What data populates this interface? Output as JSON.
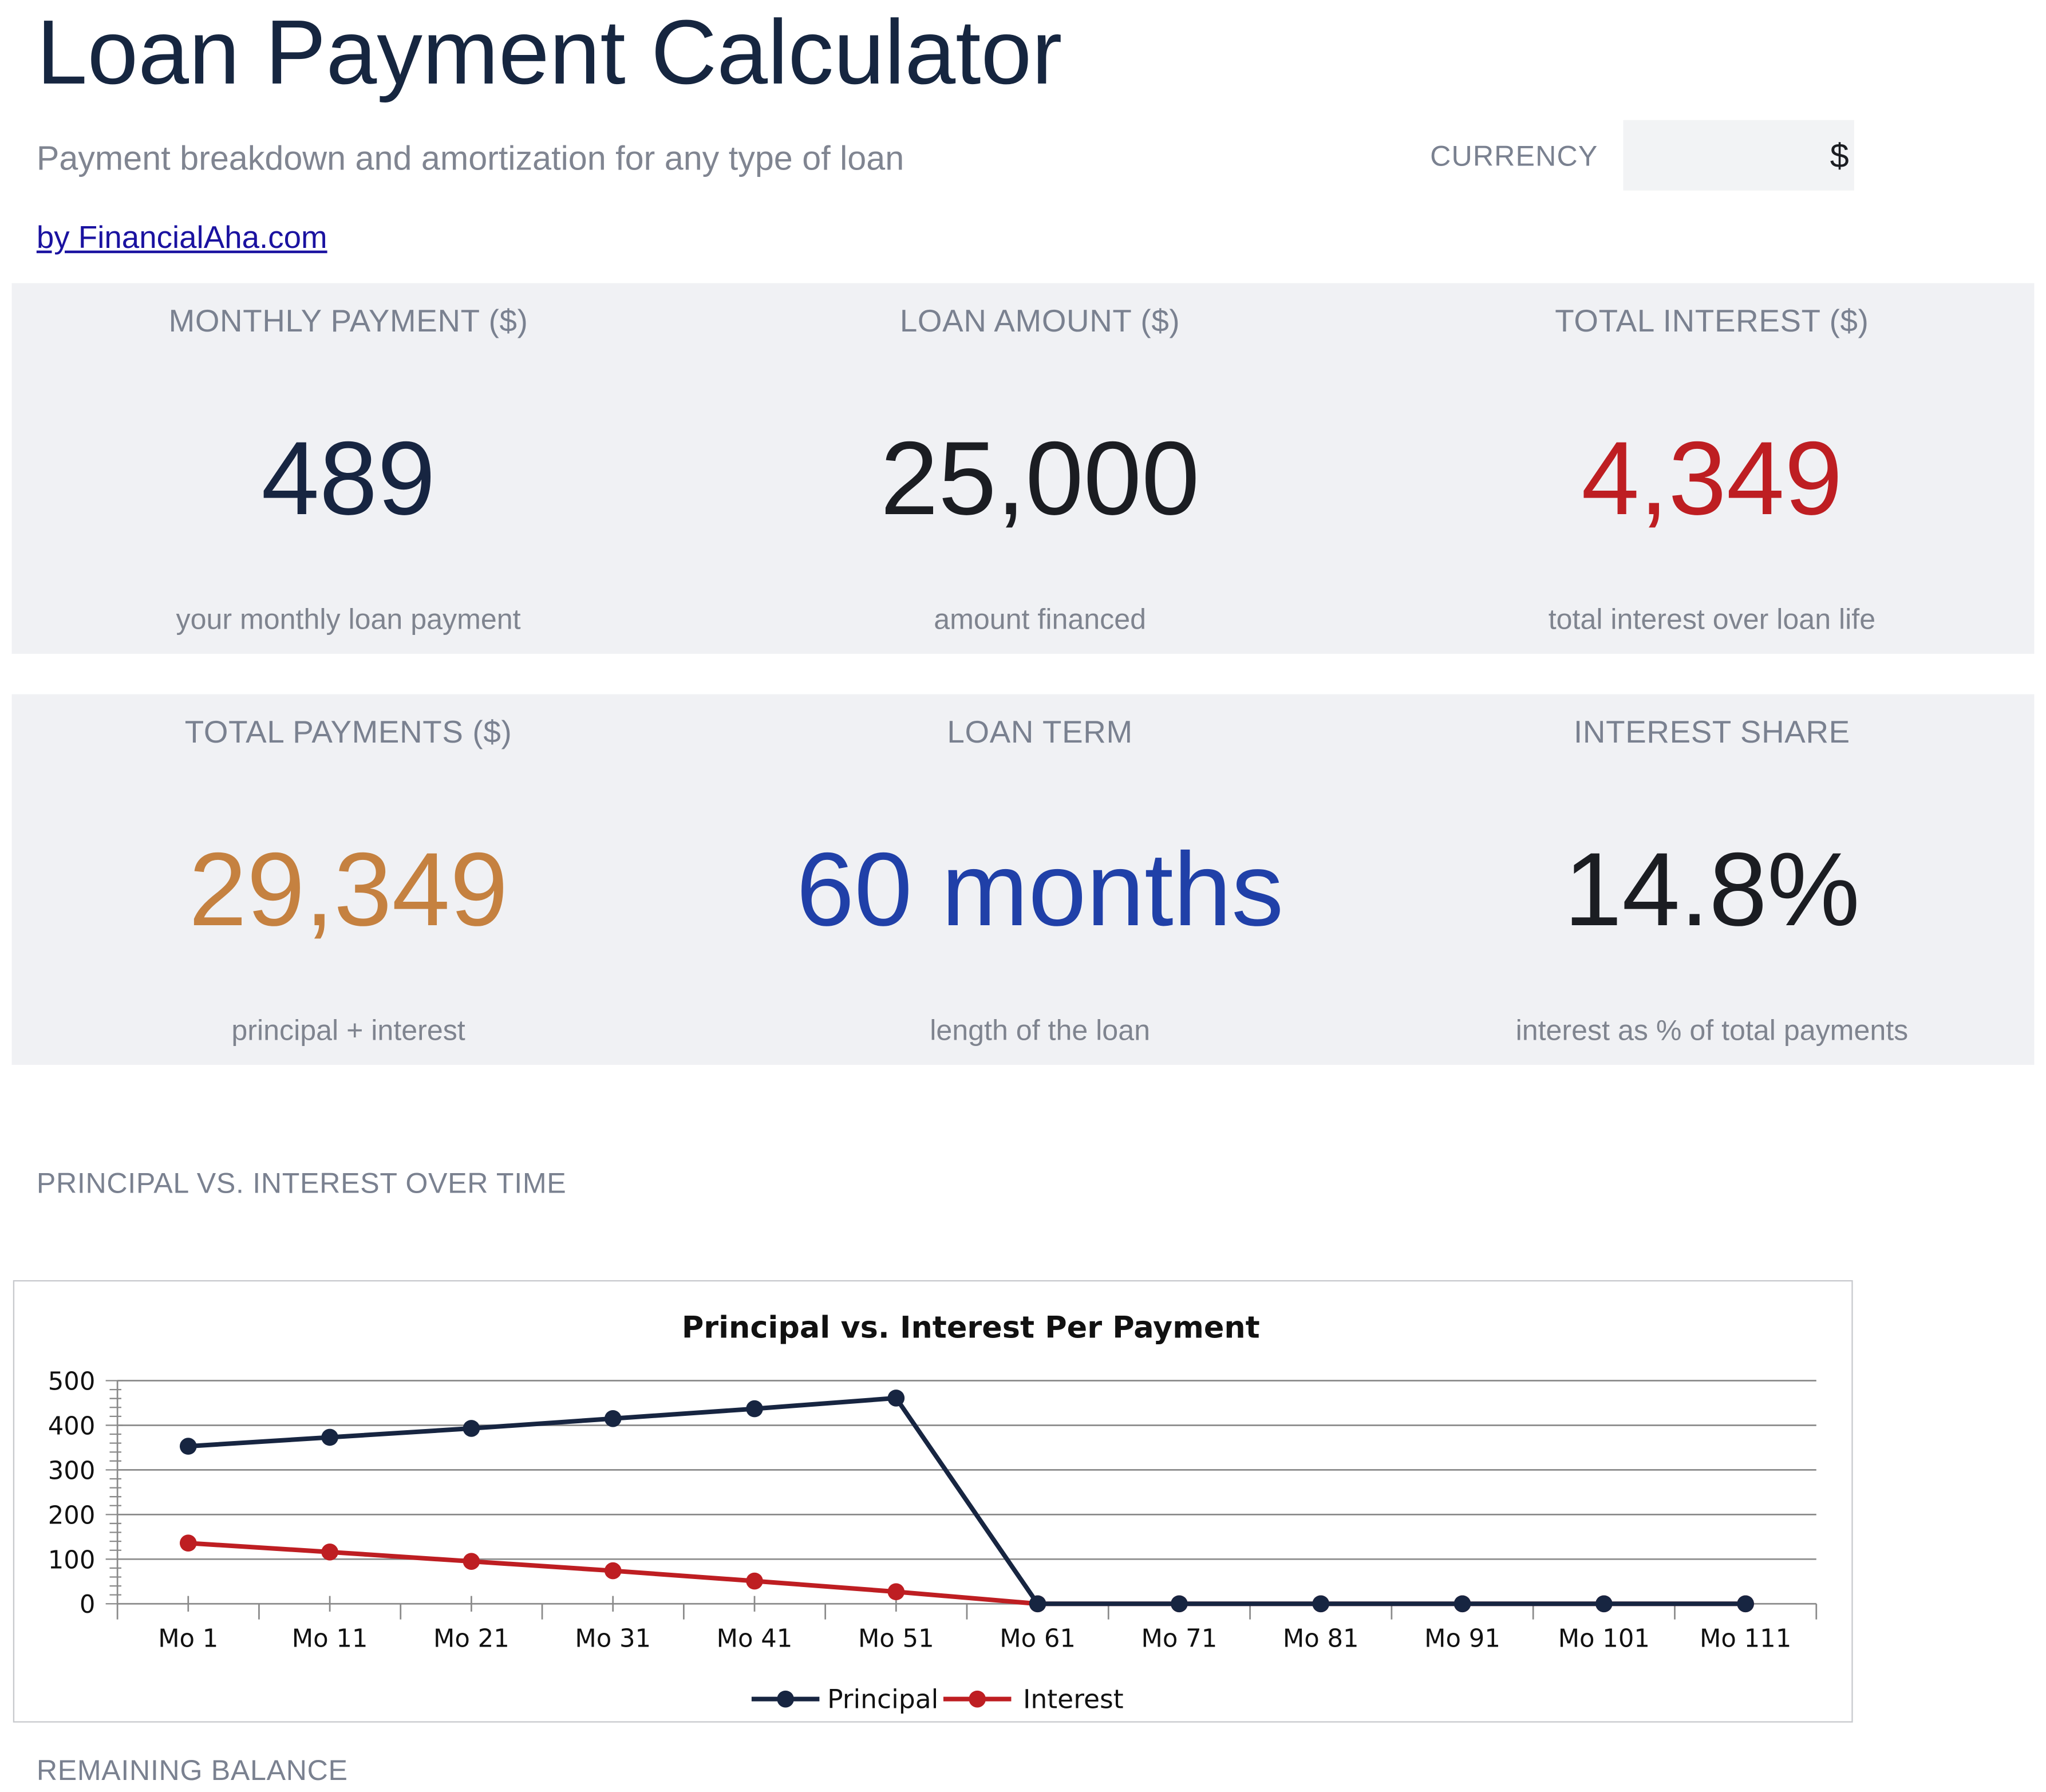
{
  "header": {
    "title": "Loan Payment Calculator",
    "subtitle": "Payment breakdown and amortization for any type of loan",
    "currency_label": "CURRENCY",
    "currency_value": "$",
    "link_text": "by FinancialAha.com"
  },
  "cards_row1": [
    {
      "label": "MONTHLY PAYMENT ($)",
      "value": "489",
      "caption": "your monthly loan payment",
      "color": "#172541"
    },
    {
      "label": "LOAN AMOUNT ($)",
      "value": "25,000",
      "caption": "amount financed",
      "color": "#1b1d22"
    },
    {
      "label": "TOTAL INTEREST ($)",
      "value": "4,349",
      "caption": "total interest over loan life",
      "color": "#be1e22"
    }
  ],
  "cards_row2": [
    {
      "label": "TOTAL PAYMENTS ($)",
      "value": "29,349",
      "caption": "principal + interest",
      "color": "#c58140"
    },
    {
      "label": "LOAN TERM",
      "value": "60 months",
      "caption": "length of the loan",
      "color": "#2040a8"
    },
    {
      "label": "INTEREST SHARE",
      "value": "14.8%",
      "caption": "interest as % of total payments",
      "color": "#1b1d22"
    }
  ],
  "sections": {
    "principal_vs_interest": "PRINCIPAL VS. INTEREST OVER TIME",
    "remaining_balance": "REMAINING BALANCE"
  },
  "chart_data": {
    "type": "line",
    "title": "Principal vs. Interest Per Payment",
    "xlabel": "",
    "ylabel": "",
    "categories": [
      "Mo 1",
      "Mo 11",
      "Mo 21",
      "Mo 31",
      "Mo 41",
      "Mo 51",
      "Mo 61",
      "Mo 71",
      "Mo 81",
      "Mo 91",
      "Mo 101",
      "Mo 111"
    ],
    "ylim": [
      0,
      500
    ],
    "yticks": [
      0,
      100,
      200,
      300,
      400,
      500
    ],
    "grid": true,
    "legend": "bottom",
    "series": [
      {
        "name": "Principal",
        "color": "#172541",
        "values": [
          353,
          373,
          393,
          415,
          437,
          461,
          0,
          0,
          0,
          0,
          0,
          0
        ]
      },
      {
        "name": "Interest",
        "color": "#be1e22",
        "values": [
          136,
          116,
          95,
          74,
          51,
          27,
          0,
          0,
          0,
          0,
          0,
          0
        ]
      }
    ]
  }
}
